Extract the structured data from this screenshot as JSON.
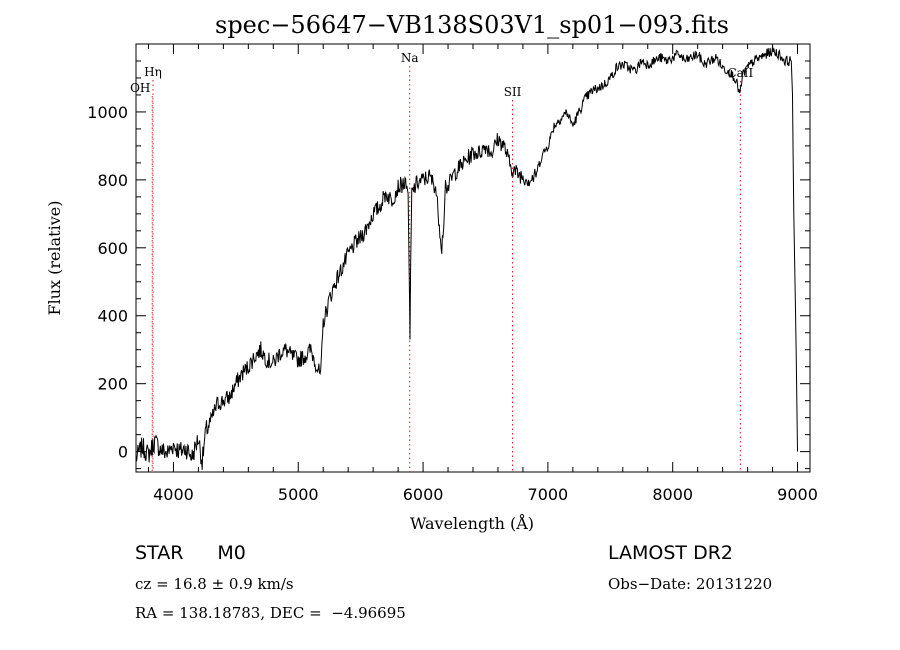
{
  "chart_data": {
    "type": "line",
    "title": "spec−56647−VB138S03V1_sp01−093.fits",
    "xlabel": "Wavelength (Å)",
    "ylabel": "Flux (relative)",
    "xlim": [
      3700,
      9100
    ],
    "ylim": [
      -60,
      1200
    ],
    "xticks": [
      4000,
      5000,
      6000,
      7000,
      8000,
      9000
    ],
    "yticks": [
      0,
      200,
      400,
      600,
      800,
      1000
    ],
    "grid": false,
    "series": [
      {
        "x": [
          3700,
          3750,
          3800,
          3850,
          3900,
          3950,
          4000,
          4050,
          4100,
          4150,
          4200,
          4230,
          4260,
          4300,
          4350,
          4400,
          4450,
          4500,
          4550,
          4600,
          4650,
          4700,
          4750,
          4800,
          4850,
          4900,
          4950,
          5000,
          5050,
          5100,
          5150,
          5180,
          5200,
          5230,
          5250,
          5300,
          5350,
          5400,
          5450,
          5500,
          5550,
          5600,
          5650,
          5700,
          5750,
          5800,
          5850,
          5880,
          5890,
          5895,
          5900,
          5910,
          5950,
          6000,
          6050,
          6100,
          6150,
          6170,
          6180,
          6190,
          6200,
          6250,
          6300,
          6350,
          6400,
          6450,
          6500,
          6550,
          6600,
          6650,
          6700,
          6750,
          6800,
          6850,
          6900,
          6950,
          7000,
          7050,
          7100,
          7150,
          7200,
          7250,
          7300,
          7350,
          7400,
          7450,
          7500,
          7550,
          7600,
          7650,
          7700,
          7750,
          7800,
          7850,
          7900,
          7950,
          8000,
          8050,
          8100,
          8150,
          8200,
          8250,
          8300,
          8350,
          8400,
          8450,
          8500,
          8540,
          8560,
          8600,
          8650,
          8700,
          8750,
          8800,
          8850,
          8900,
          8950,
          8960,
          8970,
          8985,
          9000
        ],
        "y": [
          -20,
          15,
          -10,
          30,
          5,
          -5,
          20,
          0,
          10,
          -15,
          40,
          -30,
          60,
          90,
          140,
          150,
          160,
          200,
          230,
          250,
          280,
          300,
          270,
          260,
          290,
          300,
          280,
          270,
          280,
          300,
          250,
          220,
          380,
          420,
          450,
          500,
          540,
          580,
          610,
          630,
          660,
          700,
          720,
          760,
          740,
          780,
          790,
          760,
          500,
          330,
          540,
          760,
          790,
          800,
          810,
          780,
          600,
          700,
          800,
          760,
          780,
          820,
          840,
          860,
          880,
          880,
          900,
          880,
          920,
          900,
          840,
          820,
          810,
          800,
          810,
          870,
          900,
          960,
          980,
          1000,
          960,
          1000,
          1040,
          1060,
          1070,
          1080,
          1100,
          1130,
          1140,
          1130,
          1120,
          1150,
          1140,
          1150,
          1160,
          1150,
          1160,
          1170,
          1150,
          1160,
          1170,
          1140,
          1150,
          1160,
          1130,
          1120,
          1100,
          1050,
          1110,
          1130,
          1150,
          1160,
          1170,
          1180,
          1170,
          1150,
          1150,
          1050,
          700,
          400,
          0
        ]
      }
    ],
    "lines": [
      {
        "label": "OH",
        "x": 3830
      },
      {
        "label": "Hη",
        "x": 3836
      },
      {
        "label": "Na",
        "x": 5893
      },
      {
        "label": "SII",
        "x": 6717
      },
      {
        "label": "CaII",
        "x": 8542
      }
    ]
  },
  "info": {
    "star_type": "STAR",
    "subclass": "M0",
    "cz": "cz = 16.8 ± 0.9 km/s",
    "coords": "RA = 138.18783, DEC =  −4.96695",
    "survey": "LAMOST DR2",
    "obs_date": "Obs−Date: 20131220"
  },
  "colors": {
    "spectrum": "#000000",
    "line_markers": "#d02020",
    "axes": "#000000"
  }
}
